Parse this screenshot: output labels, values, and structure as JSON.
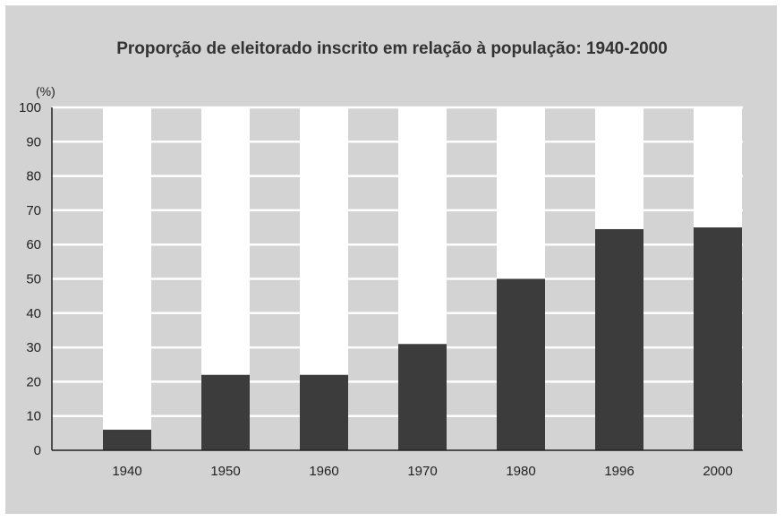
{
  "chart_data": {
    "type": "bar",
    "title": "Proporção de eleitorado inscrito em relação à população: 1940-2000",
    "ylabel": "(%)",
    "xlabel": "",
    "categories": [
      "1940",
      "1950",
      "1960",
      "1970",
      "1980",
      "1996",
      "2000"
    ],
    "values": [
      6,
      22,
      22,
      31,
      50,
      64.5,
      65
    ],
    "ylim": [
      0,
      100
    ],
    "yticks": [
      "0",
      "10",
      "20",
      "30",
      "40",
      "50",
      "60",
      "70",
      "80",
      "90",
      "100"
    ],
    "grid": true,
    "colors": {
      "bar": "#3c3c3c",
      "column": "#ffffff",
      "background": "#d3d3d3",
      "gridline": "#ffffff"
    }
  }
}
